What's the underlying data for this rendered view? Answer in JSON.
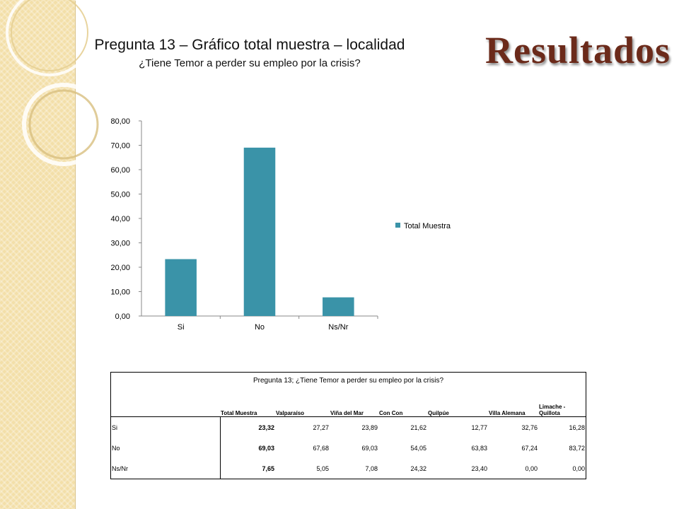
{
  "slide": {
    "title": "Resultados"
  },
  "chart_data": {
    "type": "bar",
    "title": "Pregunta 13 – Gráfico total muestra – localidad",
    "subtitle": "¿Tiene Temor a perder su empleo por la crisis?",
    "categories": [
      "Si",
      "No",
      "Ns/Nr"
    ],
    "series": [
      {
        "name": "Total Muestra",
        "values": [
          23.32,
          69.03,
          7.65
        ],
        "color": "#3a93a8"
      }
    ],
    "ylim": [
      0,
      80
    ],
    "yticks": [
      "0,00",
      "10,00",
      "20,00",
      "30,00",
      "40,00",
      "50,00",
      "60,00",
      "70,00",
      "80,00"
    ],
    "grid": false,
    "legend": "right"
  },
  "table": {
    "caption": "Pregunta 13; ¿Tiene Temor a perder su empleo por la crisis?",
    "columns": [
      "Total Muestra",
      "Valparaíso",
      "Viña del Mar",
      "Con Con",
      "Quilpúe",
      "Villa Alemana",
      "Limache - Quillota"
    ],
    "rows": [
      {
        "label": "Si",
        "values": [
          "23,32",
          "27,27",
          "23,89",
          "21,62",
          "12,77",
          "32,76",
          "16,28"
        ]
      },
      {
        "label": "No",
        "values": [
          "69,03",
          "67,68",
          "69,03",
          "54,05",
          "63,83",
          "67,24",
          "83,72"
        ]
      },
      {
        "label": "Ns/Nr",
        "values": [
          "7,65",
          "5,05",
          "7,08",
          "24,32",
          "23,40",
          "0,00",
          "0,00"
        ]
      }
    ]
  }
}
